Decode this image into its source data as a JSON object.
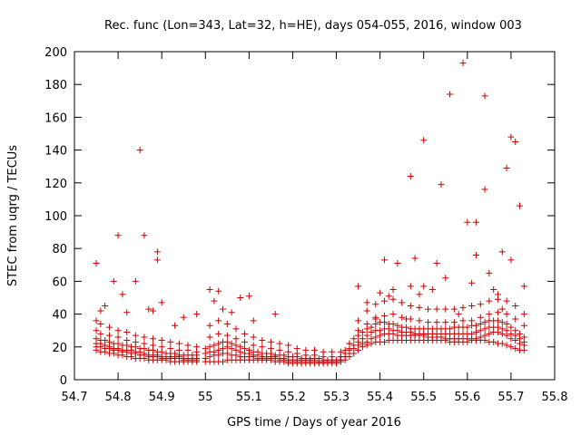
{
  "chart_data": {
    "type": "scatter",
    "title": "Rec. func (Lon=343, Lat=32, h=HE), days 054-055, 2016, window 003",
    "xlabel": "GPS time / Days of year 2016",
    "ylabel": "STEC from uqrg / TECUs",
    "xlim": [
      54.7,
      55.8
    ],
    "ylim": [
      0,
      200
    ],
    "xticks": [
      "54.7",
      "54.8",
      "54.9",
      "55",
      "55.1",
      "55.2",
      "55.3",
      "55.4",
      "55.5",
      "55.6",
      "55.7",
      "55.8"
    ],
    "yticks": [
      "0",
      "20",
      "40",
      "60",
      "80",
      "100",
      "120",
      "140",
      "160",
      "180",
      "200"
    ],
    "grid": false,
    "legend": "none",
    "marker": "plus",
    "color": "#cc0000",
    "series": [
      {
        "x": [
          54.75,
          54.76,
          54.77,
          54.78,
          54.79,
          54.8,
          54.81,
          54.82,
          54.83,
          54.84,
          54.85,
          54.86,
          54.87,
          54.88,
          54.89,
          54.9,
          54.91,
          54.92,
          54.93,
          54.94,
          54.95,
          54.96,
          54.97,
          54.98,
          55.0,
          55.01,
          55.02,
          55.03,
          55.04,
          55.05,
          55.06,
          55.07,
          55.08,
          55.09,
          55.1,
          55.11,
          55.12,
          55.13,
          55.14,
          55.15,
          55.16,
          55.17,
          55.18,
          55.19,
          55.2,
          55.21,
          55.22,
          55.23,
          55.24,
          55.25,
          55.26,
          55.27,
          55.28,
          55.29,
          55.3,
          55.31,
          55.32,
          55.33,
          55.34,
          55.35,
          55.36,
          55.37,
          55.38,
          55.39,
          55.4,
          55.41,
          55.42,
          55.43,
          55.44,
          55.45,
          55.46,
          55.47,
          55.48,
          55.49,
          55.5,
          55.51,
          55.52,
          55.53,
          55.54,
          55.55,
          55.56,
          55.57,
          55.58,
          55.59,
          55.6,
          55.61,
          55.62,
          55.63,
          55.64,
          55.65,
          55.66,
          55.67,
          55.68,
          55.69,
          55.7,
          55.71,
          55.72,
          55.73
        ],
        "y": [
          18,
          17,
          17,
          16,
          16,
          15,
          15,
          14,
          14,
          13,
          13,
          13,
          12,
          12,
          12,
          12,
          12,
          11,
          11,
          11,
          11,
          11,
          11,
          11,
          11,
          11,
          11,
          11,
          11,
          12,
          12,
          12,
          12,
          12,
          12,
          12,
          12,
          12,
          12,
          12,
          11,
          11,
          11,
          10,
          10,
          10,
          10,
          10,
          10,
          10,
          10,
          10,
          10,
          10,
          10,
          11,
          12,
          14,
          16,
          18,
          20,
          21,
          22,
          23,
          23,
          23,
          24,
          24,
          24,
          24,
          24,
          24,
          24,
          24,
          24,
          24,
          24,
          24,
          24,
          24,
          23,
          23,
          23,
          23,
          23,
          24,
          24,
          24,
          24,
          23,
          23,
          22,
          22,
          21,
          20,
          19,
          18,
          18
        ]
      },
      {
        "x": [
          54.75,
          54.76,
          54.77,
          54.78,
          54.79,
          54.8,
          54.81,
          54.82,
          54.83,
          54.84,
          54.85,
          54.86,
          54.87,
          54.88,
          54.89,
          54.9,
          54.91,
          54.92,
          54.93,
          54.94,
          54.95,
          54.96,
          54.97,
          54.98,
          55.0,
          55.01,
          55.02,
          55.03,
          55.04,
          55.05,
          55.06,
          55.07,
          55.08,
          55.09,
          55.1,
          55.11,
          55.12,
          55.13,
          55.14,
          55.15,
          55.16,
          55.17,
          55.18,
          55.19,
          55.2,
          55.21,
          55.22,
          55.23,
          55.24,
          55.25,
          55.26,
          55.27,
          55.28,
          55.29,
          55.3,
          55.31,
          55.32,
          55.33,
          55.34,
          55.35,
          55.36,
          55.37,
          55.38,
          55.39,
          55.4,
          55.41,
          55.42,
          55.43,
          55.44,
          55.45,
          55.46,
          55.47,
          55.48,
          55.49,
          55.5,
          55.51,
          55.52,
          55.53,
          55.54,
          55.55,
          55.56,
          55.57,
          55.58,
          55.59,
          55.6,
          55.61,
          55.62,
          55.63,
          55.64,
          55.65,
          55.66,
          55.67,
          55.68,
          55.69,
          55.7,
          55.71,
          55.72,
          55.73
        ],
        "y": [
          20,
          20,
          19,
          19,
          18,
          18,
          17,
          17,
          16,
          16,
          15,
          15,
          14,
          14,
          14,
          13,
          13,
          13,
          13,
          13,
          12,
          12,
          12,
          12,
          13,
          14,
          15,
          15,
          16,
          16,
          15,
          15,
          14,
          14,
          14,
          14,
          13,
          13,
          13,
          13,
          13,
          12,
          12,
          11,
          11,
          11,
          11,
          11,
          11,
          11,
          11,
          11,
          11,
          11,
          11,
          12,
          14,
          16,
          19,
          21,
          22,
          23,
          25,
          26,
          27,
          28,
          28,
          28,
          27,
          27,
          27,
          27,
          27,
          27,
          27,
          26,
          26,
          26,
          26,
          25,
          25,
          25,
          25,
          25,
          25,
          25,
          25,
          26,
          27,
          28,
          29,
          29,
          28,
          27,
          25,
          24,
          22,
          21
        ]
      },
      {
        "x": [
          54.75,
          54.76,
          54.77,
          54.78,
          54.79,
          54.8,
          54.81,
          54.82,
          54.83,
          54.84,
          54.85,
          54.86,
          54.87,
          54.88,
          54.89,
          54.9,
          54.91,
          54.92,
          54.93,
          54.94,
          54.95,
          54.96,
          54.97,
          54.98,
          55.0,
          55.01,
          55.02,
          55.03,
          55.04,
          55.05,
          55.06,
          55.07,
          55.08,
          55.09,
          55.1,
          55.11,
          55.12,
          55.13,
          55.14,
          55.15,
          55.16,
          55.17,
          55.18,
          55.19,
          55.2,
          55.21,
          55.22,
          55.23,
          55.24,
          55.25,
          55.26,
          55.27,
          55.28,
          55.29,
          55.3,
          55.31,
          55.32,
          55.33,
          55.34,
          55.35,
          55.36,
          55.37,
          55.38,
          55.39,
          55.4,
          55.41,
          55.42,
          55.43,
          55.44,
          55.45,
          55.46,
          55.47,
          55.48,
          55.49,
          55.5,
          55.51,
          55.52,
          55.53,
          55.54,
          55.55,
          55.56,
          55.57,
          55.58,
          55.59,
          55.6,
          55.61,
          55.62,
          55.63,
          55.64,
          55.65,
          55.66,
          55.67,
          55.68,
          55.69,
          55.7,
          55.71,
          55.72,
          55.73
        ],
        "y": [
          22,
          22,
          21,
          20,
          19,
          19,
          18,
          18,
          18,
          17,
          17,
          16,
          15,
          15,
          15,
          14,
          14,
          14,
          14,
          14,
          13,
          13,
          13,
          13,
          16,
          17,
          17,
          18,
          19,
          20,
          19,
          18,
          17,
          16,
          16,
          15,
          15,
          14,
          14,
          14,
          14,
          13,
          13,
          12,
          12,
          12,
          12,
          12,
          12,
          12,
          11,
          11,
          11,
          11,
          11,
          12,
          16,
          19,
          21,
          23,
          25,
          27,
          29,
          30,
          30,
          31,
          31,
          30,
          30,
          29,
          29,
          29,
          28,
          28,
          28,
          28,
          28,
          28,
          28,
          28,
          28,
          28,
          28,
          28,
          28,
          28,
          29,
          30,
          31,
          32,
          32,
          32,
          31,
          30,
          28,
          27,
          25,
          23
        ]
      },
      {
        "x": [
          54.75,
          54.76,
          54.77,
          54.78,
          54.79,
          54.8,
          54.81,
          54.82,
          54.83,
          54.84,
          54.85,
          54.86,
          54.87,
          54.88,
          54.89,
          54.9,
          54.91,
          54.92,
          54.93,
          54.94,
          54.95,
          54.96,
          54.97,
          54.98,
          55.0,
          55.01,
          55.02,
          55.03,
          55.04,
          55.05,
          55.06,
          55.07,
          55.08,
          55.09,
          55.1,
          55.11,
          55.12,
          55.13,
          55.14,
          55.15,
          55.16,
          55.17,
          55.18,
          55.19,
          55.2,
          55.21,
          55.22,
          55.23,
          55.24,
          55.25,
          55.26,
          55.27,
          55.28,
          55.29,
          55.3,
          55.31,
          55.32,
          55.33,
          55.34,
          55.35,
          55.36,
          55.37,
          55.38,
          55.39,
          55.4,
          55.41,
          55.42,
          55.43,
          55.44,
          55.45,
          55.46,
          55.47,
          55.48,
          55.49,
          55.5,
          55.51,
          55.52,
          55.53,
          55.54,
          55.55,
          55.56,
          55.57,
          55.58,
          55.59,
          55.6,
          55.61,
          55.62,
          55.63,
          55.64,
          55.65,
          55.66,
          55.67,
          55.68,
          55.69,
          55.7,
          55.71,
          55.72,
          55.73
        ],
        "y": [
          25,
          24,
          24,
          23,
          22,
          22,
          21,
          21,
          20,
          20,
          19,
          19,
          18,
          18,
          17,
          17,
          16,
          16,
          16,
          15,
          15,
          15,
          15,
          15,
          19,
          20,
          21,
          22,
          23,
          23,
          22,
          21,
          20,
          19,
          18,
          17,
          17,
          16,
          16,
          16,
          15,
          15,
          15,
          14,
          14,
          14,
          13,
          13,
          13,
          13,
          13,
          12,
          12,
          12,
          12,
          14,
          18,
          22,
          25,
          27,
          29,
          31,
          32,
          34,
          35,
          35,
          34,
          34,
          33,
          32,
          32,
          31,
          31,
          31,
          31,
          31,
          31,
          31,
          31,
          31,
          31,
          32,
          32,
          32,
          32,
          33,
          33,
          34,
          35,
          36,
          36,
          36,
          35,
          34,
          32,
          30,
          28,
          26
        ]
      },
      {
        "x": [
          54.75,
          54.76,
          54.78,
          54.8,
          54.82,
          54.84,
          54.86,
          54.88,
          54.9,
          54.92,
          54.94,
          54.96,
          54.98,
          55.01,
          55.03,
          55.05,
          55.07,
          55.09,
          55.11,
          55.13,
          55.15,
          55.17,
          55.19,
          55.21,
          55.23,
          55.25,
          55.27,
          55.29,
          55.31,
          55.33,
          55.35,
          55.37,
          55.39,
          55.41,
          55.43,
          55.45,
          55.47,
          55.49,
          55.51,
          55.53,
          55.55,
          55.57,
          55.59,
          55.61,
          55.63,
          55.65,
          55.67,
          55.69,
          55.71,
          55.73
        ],
        "y": [
          30,
          28,
          27,
          26,
          24,
          23,
          22,
          21,
          20,
          19,
          18,
          18,
          17,
          26,
          28,
          27,
          25,
          23,
          21,
          20,
          19,
          18,
          17,
          16,
          15,
          15,
          14,
          14,
          14,
          18,
          30,
          34,
          37,
          39,
          40,
          38,
          37,
          36,
          35,
          35,
          35,
          35,
          36,
          36,
          38,
          40,
          41,
          40,
          37,
          33
        ]
      },
      {
        "x": [
          54.75,
          54.76,
          54.78,
          54.8,
          54.82,
          54.84,
          54.86,
          54.88,
          54.9,
          54.92,
          54.94,
          54.96,
          54.98,
          55.01,
          55.03,
          55.05,
          55.07,
          55.09,
          55.11,
          55.13,
          55.15,
          55.17,
          55.19,
          55.21,
          55.23,
          55.25,
          55.27,
          55.29,
          55.31,
          55.33,
          55.35,
          55.37,
          55.39,
          55.41,
          55.43,
          55.45,
          55.47,
          55.49,
          55.51,
          55.53,
          55.55,
          55.57,
          55.59,
          55.61,
          55.63,
          55.65,
          55.67,
          55.69,
          55.71,
          55.73
        ],
        "y": [
          36,
          34,
          32,
          30,
          29,
          27,
          26,
          25,
          24,
          23,
          22,
          21,
          20,
          33,
          36,
          34,
          31,
          28,
          26,
          24,
          23,
          22,
          21,
          19,
          18,
          18,
          17,
          17,
          17,
          22,
          36,
          42,
          46,
          48,
          49,
          47,
          45,
          44,
          43,
          43,
          43,
          43,
          44,
          45,
          46,
          48,
          49,
          48,
          45,
          40
        ]
      },
      {
        "x": [
          54.75,
          54.76,
          54.77,
          54.79,
          54.8,
          54.81,
          54.82,
          54.84,
          54.85,
          54.86,
          54.87,
          54.88,
          54.89,
          54.89,
          54.9,
          54.93,
          54.95,
          54.98,
          55.01,
          55.02,
          55.03,
          55.04,
          55.06,
          55.08,
          55.1,
          55.11,
          55.16,
          55.35,
          55.37,
          55.39,
          55.4,
          55.41,
          55.42,
          55.43,
          55.44,
          55.46,
          55.47,
          55.47,
          55.48,
          55.49,
          55.5,
          55.5,
          55.52,
          55.53,
          55.54,
          55.55,
          55.56,
          55.58,
          55.59,
          55.6,
          55.61,
          55.62,
          55.62,
          55.64,
          55.64,
          55.65,
          55.66,
          55.67,
          55.68,
          55.68,
          55.69,
          55.7,
          55.7,
          55.71,
          55.72,
          55.73
        ],
        "y": [
          71,
          42,
          45,
          60,
          88,
          52,
          41,
          60,
          140,
          88,
          43,
          42,
          78,
          73,
          47,
          33,
          38,
          40,
          55,
          48,
          54,
          43,
          41,
          50,
          51,
          36,
          40,
          57,
          47,
          38,
          53,
          73,
          51,
          55,
          71,
          37,
          124,
          57,
          74,
          52,
          146,
          57,
          55,
          71,
          119,
          62,
          174,
          40,
          193,
          96,
          59,
          76,
          96,
          173,
          116,
          65,
          55,
          52,
          78,
          43,
          129,
          73,
          148,
          145,
          106,
          57
        ]
      }
    ]
  }
}
